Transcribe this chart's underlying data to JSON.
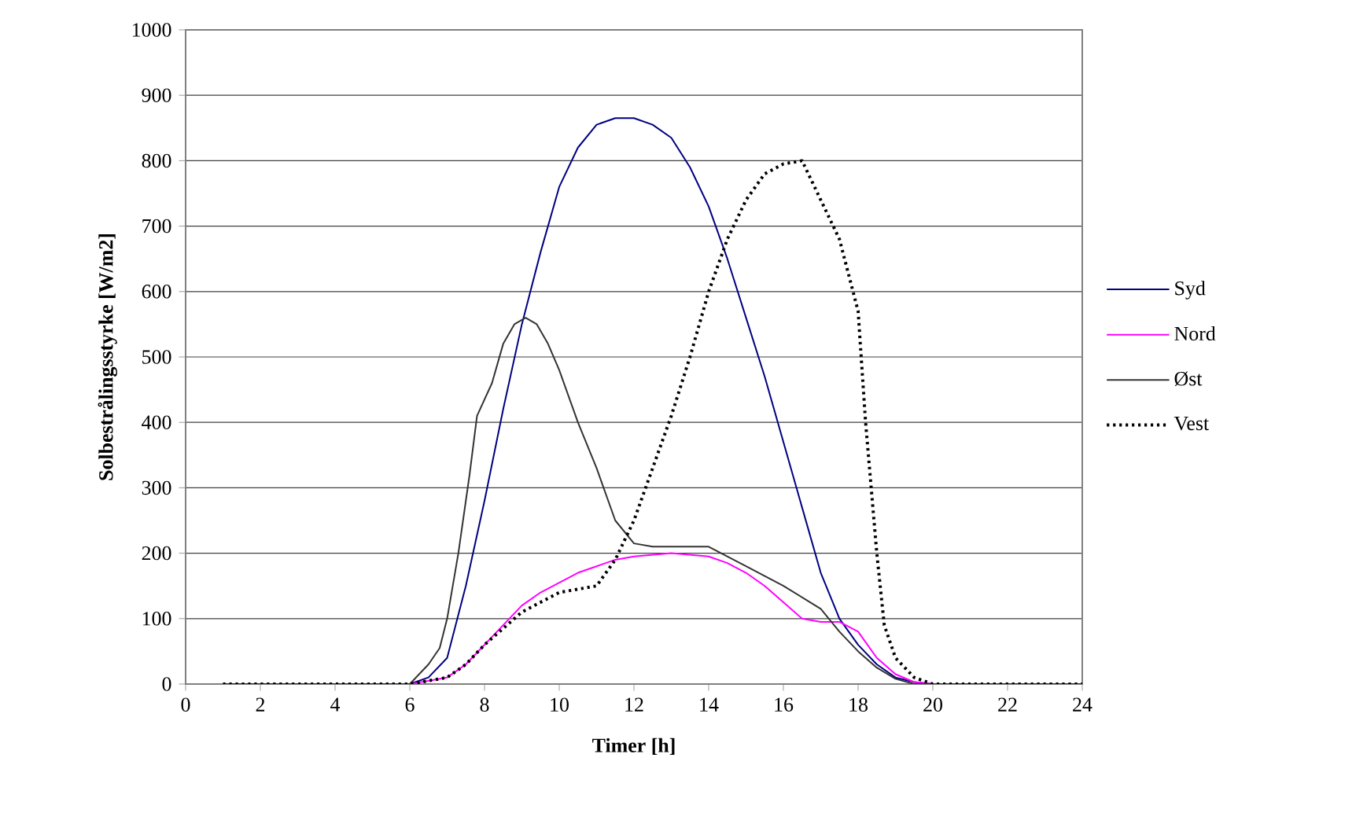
{
  "chart_data": {
    "type": "line",
    "xlabel": "Timer [h]",
    "ylabel": "Solbestrålingsstyrke [W/m2]",
    "xlim": [
      0,
      24
    ],
    "ylim": [
      0,
      1000
    ],
    "xticks": [
      0,
      2,
      4,
      6,
      8,
      10,
      12,
      14,
      16,
      18,
      20,
      22,
      24
    ],
    "yticks": [
      0,
      100,
      200,
      300,
      400,
      500,
      600,
      700,
      800,
      900,
      1000
    ],
    "grid": "y",
    "legend": "right",
    "marker": "none",
    "series": [
      {
        "name": "Syd",
        "color": "#000080",
        "line_style": "solid",
        "x": [
          6,
          6.5,
          7,
          7.5,
          8,
          8.5,
          9,
          9.5,
          10,
          10.5,
          11,
          11.5,
          12,
          12.5,
          13,
          13.5,
          14,
          14.5,
          15,
          15.5,
          16,
          16.5,
          17,
          17.5,
          18,
          18.5,
          19,
          19.5,
          20
        ],
        "values": [
          0,
          10,
          40,
          150,
          280,
          420,
          550,
          660,
          760,
          820,
          855,
          865,
          865,
          855,
          835,
          790,
          730,
          650,
          560,
          470,
          370,
          270,
          170,
          100,
          60,
          30,
          10,
          3,
          0
        ]
      },
      {
        "name": "Nord",
        "color": "#ff00ff",
        "line_style": "solid",
        "x": [
          5,
          6,
          7,
          7.5,
          8,
          8.5,
          9,
          9.5,
          10,
          10.5,
          11,
          11.5,
          12,
          13,
          14,
          14.5,
          15,
          15.5,
          16,
          16.5,
          17,
          17.5,
          18,
          18.5,
          19,
          19.5,
          20,
          21
        ],
        "values": [
          0,
          0,
          10,
          30,
          60,
          90,
          120,
          140,
          155,
          170,
          180,
          190,
          195,
          200,
          195,
          185,
          170,
          150,
          125,
          100,
          95,
          95,
          80,
          40,
          15,
          3,
          0,
          0
        ]
      },
      {
        "name": "Øst",
        "color": "#333333",
        "line_style": "solid",
        "x": [
          1,
          2,
          3,
          4,
          5,
          6,
          6.5,
          6.8,
          7,
          7.3,
          7.6,
          7.8,
          8.2,
          8.5,
          8.8,
          9.1,
          9.4,
          9.7,
          10,
          10.5,
          11,
          11.5,
          12,
          12.5,
          13,
          14,
          15,
          16,
          17,
          17.5,
          18,
          18.5,
          19,
          19.5,
          20,
          21,
          22,
          23,
          24
        ],
        "values": [
          0,
          0,
          0,
          0,
          0,
          0,
          30,
          55,
          100,
          200,
          320,
          410,
          460,
          520,
          550,
          560,
          550,
          520,
          480,
          400,
          330,
          250,
          215,
          210,
          210,
          210,
          180,
          150,
          115,
          80,
          50,
          25,
          8,
          0,
          0,
          0,
          0,
          0,
          0
        ]
      },
      {
        "name": "Vest",
        "color": "#000000",
        "line_style": "dotted",
        "x": [
          1,
          2,
          3,
          4,
          5,
          6,
          7,
          7.5,
          8,
          8.5,
          9,
          9.5,
          10,
          10.5,
          11,
          11.5,
          12,
          12.5,
          13,
          13.5,
          14,
          14.5,
          15,
          15.5,
          16,
          16.5,
          17,
          17.5,
          18,
          18.2,
          18.5,
          18.7,
          19,
          19.5,
          20,
          21,
          22,
          23,
          24
        ],
        "values": [
          0,
          0,
          0,
          0,
          0,
          0,
          10,
          30,
          60,
          85,
          110,
          125,
          140,
          145,
          150,
          190,
          250,
          330,
          410,
          500,
          600,
          680,
          740,
          780,
          795,
          800,
          740,
          680,
          570,
          400,
          200,
          90,
          40,
          10,
          0,
          0,
          0,
          0,
          0
        ]
      }
    ]
  }
}
